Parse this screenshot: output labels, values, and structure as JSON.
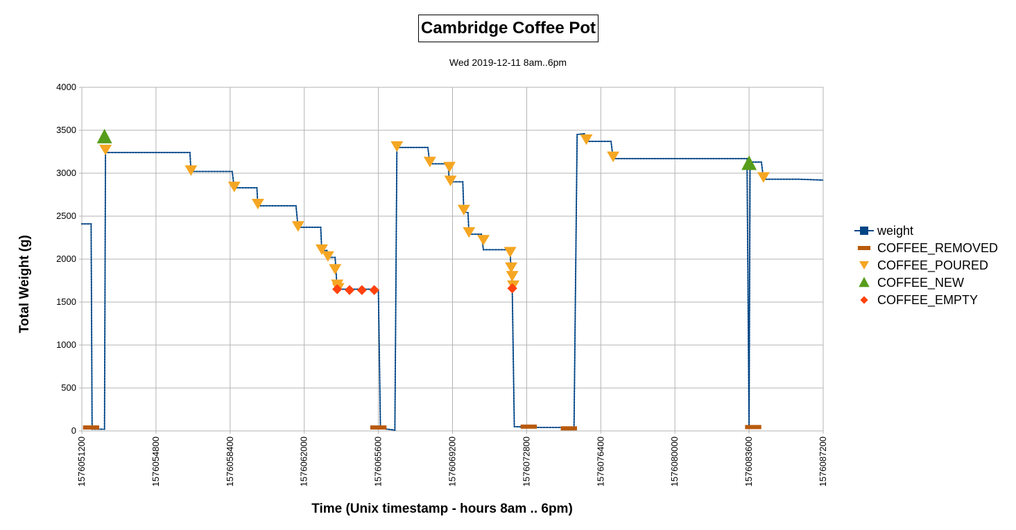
{
  "chart_data": {
    "type": "scatter",
    "title": "Cambridge Coffee Pot",
    "subtitle": "Wed 2019-12-11 8am..6pm",
    "xlabel": "Time (Unix timestamp - hours 8am .. 6pm)",
    "ylabel": "Total Weight (g)",
    "xlim": [
      1576051200,
      1576087200
    ],
    "ylim": [
      0,
      4000
    ],
    "x_ticks": [
      1576051200,
      1576054800,
      1576058400,
      1576062000,
      1576065600,
      1576069200,
      1576072800,
      1576076400,
      1576080000,
      1576083600,
      1576087200
    ],
    "y_ticks": [
      0,
      500,
      1000,
      1500,
      2000,
      2500,
      3000,
      3500,
      4000
    ],
    "grid": true,
    "legend_position": "right",
    "series": [
      {
        "name": "weight",
        "color": "#004586",
        "style": "line-step",
        "points": [
          [
            1576051200,
            2410
          ],
          [
            1576051650,
            2410
          ],
          [
            1576051700,
            20
          ],
          [
            1576052300,
            20
          ],
          [
            1576052350,
            3240
          ],
          [
            1576053000,
            3240
          ],
          [
            1576054800,
            3240
          ],
          [
            1576056450,
            3240
          ],
          [
            1576056500,
            3020
          ],
          [
            1576058500,
            3020
          ],
          [
            1576058600,
            2830
          ],
          [
            1576059700,
            2830
          ],
          [
            1576059750,
            2620
          ],
          [
            1576061600,
            2620
          ],
          [
            1576061700,
            2370
          ],
          [
            1576062800,
            2370
          ],
          [
            1576062850,
            2100
          ],
          [
            1576063100,
            2100
          ],
          [
            1576063200,
            2020
          ],
          [
            1576063500,
            2020
          ],
          [
            1576063600,
            1650
          ],
          [
            1576065400,
            1650
          ],
          [
            1576065600,
            1640
          ],
          [
            1576065700,
            30
          ],
          [
            1576066400,
            10
          ],
          [
            1576066500,
            3300
          ],
          [
            1576068000,
            3300
          ],
          [
            1576068100,
            3110
          ],
          [
            1576068950,
            3110
          ],
          [
            1576069000,
            3060
          ],
          [
            1576069050,
            2900
          ],
          [
            1576069700,
            2900
          ],
          [
            1576069750,
            2550
          ],
          [
            1576069950,
            2540
          ],
          [
            1576070000,
            2290
          ],
          [
            1576070600,
            2290
          ],
          [
            1576070700,
            2110
          ],
          [
            1576071900,
            2110
          ],
          [
            1576072000,
            2060
          ],
          [
            1576072100,
            1660
          ],
          [
            1576072200,
            50
          ],
          [
            1576073500,
            40
          ],
          [
            1576075100,
            40
          ],
          [
            1576075250,
            3450
          ],
          [
            1576075600,
            3460
          ],
          [
            1576075700,
            3370
          ],
          [
            1576076900,
            3370
          ],
          [
            1576077000,
            3170
          ],
          [
            1576083500,
            3170
          ],
          [
            1576083600,
            40
          ],
          [
            1576083650,
            3130
          ],
          [
            1576084200,
            3130
          ],
          [
            1576084300,
            2930
          ],
          [
            1576086000,
            2930
          ],
          [
            1576087200,
            2920
          ]
        ]
      },
      {
        "name": "COFFEE_REMOVED",
        "color": "#b85a0d",
        "marker": "dash",
        "points": [
          [
            1576051650,
            40
          ],
          [
            1576065600,
            40
          ],
          [
            1576072900,
            50
          ],
          [
            1576074850,
            30
          ],
          [
            1576083800,
            45
          ]
        ]
      },
      {
        "name": "COFFEE_POURED",
        "color": "#f5a623",
        "marker": "triangle-down",
        "points": [
          [
            1576052350,
            3270
          ],
          [
            1576056500,
            3030
          ],
          [
            1576058600,
            2840
          ],
          [
            1576059750,
            2640
          ],
          [
            1576061700,
            2380
          ],
          [
            1576062850,
            2110
          ],
          [
            1576063150,
            2030
          ],
          [
            1576063500,
            1880
          ],
          [
            1576063600,
            1700
          ],
          [
            1576063650,
            1660
          ],
          [
            1576066500,
            3310
          ],
          [
            1576068100,
            3130
          ],
          [
            1576069050,
            3070
          ],
          [
            1576069100,
            2910
          ],
          [
            1576069750,
            2570
          ],
          [
            1576070000,
            2310
          ],
          [
            1576070700,
            2220
          ],
          [
            1576072000,
            2080
          ],
          [
            1576072050,
            1900
          ],
          [
            1576072100,
            1800
          ],
          [
            1576072150,
            1690
          ],
          [
            1576075700,
            3390
          ],
          [
            1576077000,
            3190
          ],
          [
            1576084300,
            2950
          ]
        ]
      },
      {
        "name": "COFFEE_NEW",
        "color": "#579d1c",
        "marker": "triangle-up",
        "points": [
          [
            1576052300,
            3420
          ],
          [
            1576083600,
            3110
          ]
        ]
      },
      {
        "name": "COFFEE_EMPTY",
        "color": "#ff420e",
        "marker": "diamond",
        "points": [
          [
            1576063600,
            1650
          ],
          [
            1576064200,
            1640
          ],
          [
            1576064800,
            1640
          ],
          [
            1576065400,
            1640
          ],
          [
            1576072100,
            1660
          ]
        ]
      }
    ]
  }
}
